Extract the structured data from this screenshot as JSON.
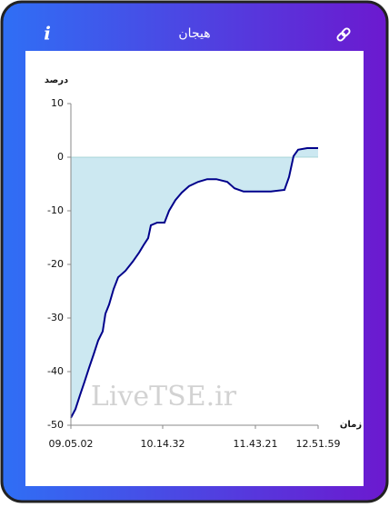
{
  "header": {
    "title": "هیجان",
    "info": "i"
  },
  "chart_data": {
    "type": "area",
    "ylabel": "درصد",
    "xlabel": "زمان",
    "watermark": "LiveTSE.ir",
    "x": [
      0,
      5,
      10,
      15,
      20,
      25,
      30,
      35,
      38,
      42,
      47,
      52,
      60,
      68,
      75,
      80,
      85,
      88,
      95,
      103,
      108,
      115,
      122,
      130,
      140,
      150,
      160,
      172,
      180,
      190,
      200,
      210,
      220,
      235,
      240,
      245,
      250,
      260,
      272
    ],
    "series": [
      {
        "name": "هیجان",
        "color": "#00008b",
        "fill": "#cce8f1",
        "values": [
          -48.6,
          -47,
          -44.4,
          -41.9,
          -39.3,
          -36.8,
          -34.2,
          -32.5,
          -29.2,
          -27.5,
          -24.6,
          -22.4,
          -21.2,
          -19.5,
          -17.8,
          -16.4,
          -15.1,
          -12.7,
          -12.2,
          -12.2,
          -10,
          -8,
          -6.6,
          -5.4,
          -4.6,
          -4.1,
          -4.1,
          -4.6,
          -5.8,
          -6.4,
          -6.4,
          -6.4,
          -6.4,
          -6.1,
          -3.7,
          0.2,
          1.4,
          1.7,
          1.7
        ]
      }
    ],
    "xlim": [
      0,
      272
    ],
    "xticks": [
      {
        "value": 0,
        "label": "09.05.02"
      },
      {
        "value": 101,
        "label": "10.14.32"
      },
      {
        "value": 203,
        "label": "11.43.21"
      },
      {
        "value": 272,
        "label": "12.51.59"
      }
    ],
    "ylim": [
      -50,
      10
    ],
    "yticks": [
      -50,
      -40,
      -30,
      -20,
      -10,
      0,
      10
    ]
  }
}
